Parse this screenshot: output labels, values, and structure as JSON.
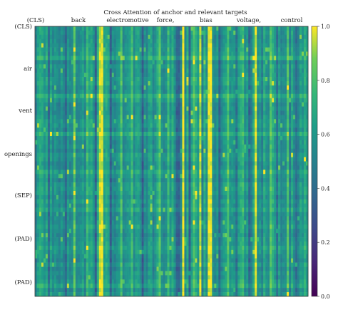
{
  "chart_data": {
    "type": "heatmap",
    "title": "Cross Attention of anchor and relevant targets",
    "x_tick_labels": [
      "(CLS)",
      "back",
      "electromotive",
      "force,",
      "bias",
      "voltage,",
      "control"
    ],
    "y_tick_labels": [
      "(CLS)",
      "air",
      "vent",
      "openings",
      "(SEP)",
      "(PAD)",
      "(PAD)"
    ],
    "colorbar": {
      "colormap": "viridis",
      "range": [
        0.0,
        1.0
      ],
      "ticks": [
        "0.0",
        "0.2",
        "0.4",
        "0.6",
        "0.8",
        "1.0"
      ]
    },
    "approx_columns": 128,
    "approx_rows": 64,
    "value_range_observed": [
      0.3,
      1.0
    ],
    "notes_visible": "bright vertical stripes (values near 1.0) around the 'back' and 'force,/bias' columns; dark stripe (~0.3) near 'force,'"
  },
  "colors": {
    "viridis_0": "#440154",
    "viridis_25": "#3b528b",
    "viridis_50": "#21918c",
    "viridis_75": "#5ec962",
    "viridis_100": "#fde725"
  }
}
